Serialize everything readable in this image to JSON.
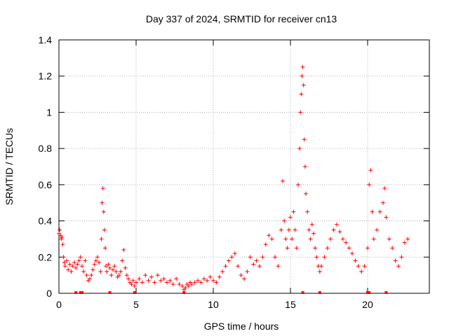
{
  "chart_data": {
    "type": "scatter",
    "title": "Day 337 of 2024, SRMTID for receiver cn13",
    "xlabel": "GPS time / hours",
    "ylabel": "SRMTID / TECUs",
    "xlim": [
      0,
      24
    ],
    "ylim": [
      0,
      1.4
    ],
    "xticks": [
      0,
      5,
      10,
      15,
      20
    ],
    "yticks": [
      0,
      0.2,
      0.4,
      0.6,
      0.8,
      1,
      1.2,
      1.4
    ],
    "xtick_labels": [
      "0",
      "5",
      "10",
      "15",
      "20"
    ],
    "ytick_labels": [
      "0",
      "0.2",
      "0.4",
      "0.6",
      "0.8",
      "1",
      "1.2",
      "1.4"
    ],
    "grid": true,
    "marker": "+",
    "color": "#ff0000",
    "series": [
      {
        "name": "SRMTID",
        "points": [
          [
            0.0,
            0.33
          ],
          [
            0.05,
            0.35
          ],
          [
            0.1,
            0.32
          ],
          [
            0.15,
            0.3
          ],
          [
            0.2,
            0.31
          ],
          [
            0.25,
            0.27
          ],
          [
            0.3,
            0.2
          ],
          [
            0.35,
            0.17
          ],
          [
            0.4,
            0.15
          ],
          [
            0.5,
            0.18
          ],
          [
            0.6,
            0.13
          ],
          [
            0.7,
            0.16
          ],
          [
            0.8,
            0.12
          ],
          [
            0.9,
            0.15
          ],
          [
            1.0,
            0.17
          ],
          [
            1.1,
            0.14
          ],
          [
            1.2,
            0.16
          ],
          [
            1.3,
            0.18
          ],
          [
            1.4,
            0.2
          ],
          [
            1.5,
            0.15
          ],
          [
            1.6,
            0.12
          ],
          [
            1.7,
            0.18
          ],
          [
            1.8,
            0.1
          ],
          [
            1.9,
            0.07
          ],
          [
            2.0,
            0.08
          ],
          [
            2.1,
            0.1
          ],
          [
            2.2,
            0.13
          ],
          [
            2.3,
            0.16
          ],
          [
            2.4,
            0.18
          ],
          [
            2.5,
            0.2
          ],
          [
            2.6,
            0.17
          ],
          [
            2.7,
            0.12
          ],
          [
            2.75,
            0.3
          ],
          [
            2.8,
            0.5
          ],
          [
            2.85,
            0.58
          ],
          [
            2.9,
            0.45
          ],
          [
            2.95,
            0.35
          ],
          [
            3.0,
            0.25
          ],
          [
            3.05,
            0.15
          ],
          [
            3.1,
            0.12
          ],
          [
            3.2,
            0.16
          ],
          [
            3.3,
            0.14
          ],
          [
            3.4,
            0.1
          ],
          [
            3.5,
            0.13
          ],
          [
            3.6,
            0.15
          ],
          [
            3.7,
            0.12
          ],
          [
            3.8,
            0.09
          ],
          [
            3.9,
            0.1
          ],
          [
            4.0,
            0.12
          ],
          [
            4.1,
            0.18
          ],
          [
            4.2,
            0.24
          ],
          [
            4.3,
            0.14
          ],
          [
            4.4,
            0.1
          ],
          [
            4.5,
            0.08
          ],
          [
            4.6,
            0.06
          ],
          [
            4.7,
            0.05
          ],
          [
            4.8,
            0.07
          ],
          [
            4.9,
            0.04
          ],
          [
            5.0,
            0.06
          ],
          [
            5.2,
            0.08
          ],
          [
            5.4,
            0.06
          ],
          [
            5.6,
            0.1
          ],
          [
            5.8,
            0.07
          ],
          [
            6.0,
            0.09
          ],
          [
            6.2,
            0.06
          ],
          [
            6.4,
            0.1
          ],
          [
            6.6,
            0.07
          ],
          [
            6.8,
            0.08
          ],
          [
            7.0,
            0.06
          ],
          [
            7.2,
            0.07
          ],
          [
            7.4,
            0.05
          ],
          [
            7.6,
            0.08
          ],
          [
            7.8,
            0.05
          ],
          [
            8.0,
            0.04
          ],
          [
            8.1,
            0.02
          ],
          [
            8.2,
            0.03
          ],
          [
            8.3,
            0.05
          ],
          [
            8.4,
            0.04
          ],
          [
            8.5,
            0.06
          ],
          [
            8.6,
            0.05
          ],
          [
            8.8,
            0.06
          ],
          [
            9.0,
            0.07
          ],
          [
            9.2,
            0.06
          ],
          [
            9.4,
            0.08
          ],
          [
            9.6,
            0.07
          ],
          [
            9.8,
            0.09
          ],
          [
            10.0,
            0.07
          ],
          [
            10.2,
            0.06
          ],
          [
            10.4,
            0.09
          ],
          [
            10.6,
            0.12
          ],
          [
            10.8,
            0.15
          ],
          [
            11.0,
            0.18
          ],
          [
            11.2,
            0.2
          ],
          [
            11.4,
            0.22
          ],
          [
            11.6,
            0.15
          ],
          [
            11.8,
            0.1
          ],
          [
            12.0,
            0.08
          ],
          [
            12.2,
            0.12
          ],
          [
            12.4,
            0.2
          ],
          [
            12.6,
            0.16
          ],
          [
            12.8,
            0.18
          ],
          [
            13.0,
            0.15
          ],
          [
            13.2,
            0.2
          ],
          [
            13.4,
            0.27
          ],
          [
            13.6,
            0.32
          ],
          [
            13.8,
            0.3
          ],
          [
            14.0,
            0.2
          ],
          [
            14.2,
            0.15
          ],
          [
            14.4,
            0.35
          ],
          [
            14.5,
            0.62
          ],
          [
            14.6,
            0.4
          ],
          [
            14.7,
            0.3
          ],
          [
            14.8,
            0.25
          ],
          [
            14.9,
            0.35
          ],
          [
            15.0,
            0.42
          ],
          [
            15.1,
            0.3
          ],
          [
            15.2,
            0.45
          ],
          [
            15.3,
            0.35
          ],
          [
            15.4,
            0.25
          ],
          [
            15.5,
            0.6
          ],
          [
            15.6,
            0.8
          ],
          [
            15.65,
            1.0
          ],
          [
            15.7,
            1.1
          ],
          [
            15.75,
            1.2
          ],
          [
            15.8,
            1.25
          ],
          [
            15.85,
            1.15
          ],
          [
            15.9,
            0.85
          ],
          [
            15.95,
            0.7
          ],
          [
            16.0,
            0.55
          ],
          [
            16.1,
            0.45
          ],
          [
            16.2,
            0.35
          ],
          [
            16.3,
            0.3
          ],
          [
            16.4,
            0.38
          ],
          [
            16.5,
            0.33
          ],
          [
            16.6,
            0.25
          ],
          [
            16.7,
            0.2
          ],
          [
            16.8,
            0.15
          ],
          [
            16.9,
            0.12
          ],
          [
            17.0,
            0.15
          ],
          [
            17.2,
            0.2
          ],
          [
            17.4,
            0.25
          ],
          [
            17.6,
            0.3
          ],
          [
            17.8,
            0.35
          ],
          [
            18.0,
            0.38
          ],
          [
            18.2,
            0.34
          ],
          [
            18.4,
            0.3
          ],
          [
            18.6,
            0.28
          ],
          [
            18.8,
            0.25
          ],
          [
            19.0,
            0.22
          ],
          [
            19.2,
            0.18
          ],
          [
            19.4,
            0.15
          ],
          [
            19.6,
            0.12
          ],
          [
            19.8,
            0.15
          ],
          [
            20.0,
            0.25
          ],
          [
            20.1,
            0.6
          ],
          [
            20.2,
            0.68
          ],
          [
            20.3,
            0.45
          ],
          [
            20.4,
            0.3
          ],
          [
            20.6,
            0.35
          ],
          [
            20.8,
            0.45
          ],
          [
            21.0,
            0.5
          ],
          [
            21.1,
            0.58
          ],
          [
            21.2,
            0.42
          ],
          [
            21.4,
            0.3
          ],
          [
            21.6,
            0.25
          ],
          [
            21.8,
            0.18
          ],
          [
            22.0,
            0.15
          ],
          [
            22.2,
            0.2
          ],
          [
            22.4,
            0.28
          ],
          [
            22.6,
            0.3
          ]
        ],
        "zero_markers": [
          1.1,
          1.4,
          1.5,
          3.3,
          4.9,
          8.1,
          15.8,
          16.9,
          20.0,
          20.1,
          21.2
        ]
      }
    ]
  }
}
